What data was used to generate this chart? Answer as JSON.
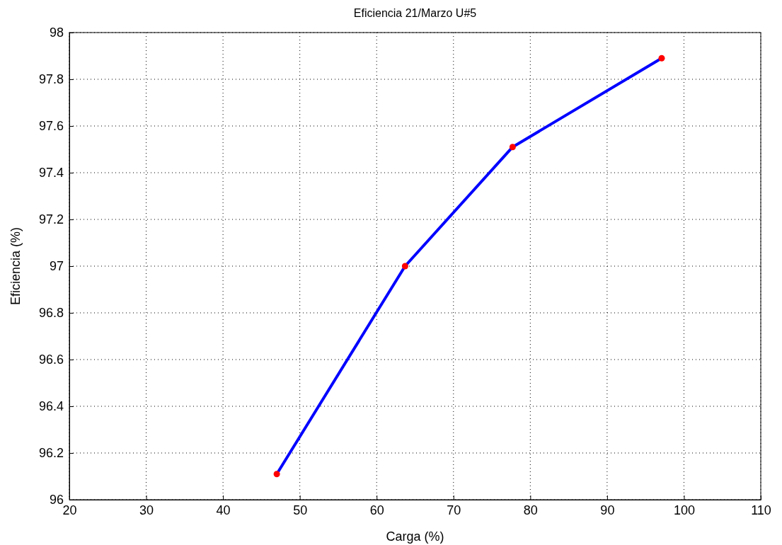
{
  "chart_data": {
    "type": "line",
    "title": "Eficiencia 21/Marzo U#5",
    "xlabel": "Carga (%)",
    "ylabel": "Eficiencia (%)",
    "xlim": [
      20,
      110
    ],
    "xticks": [
      20,
      30,
      40,
      50,
      60,
      70,
      80,
      90,
      100,
      110
    ],
    "ylim": [
      96,
      98
    ],
    "yticks": [
      96,
      {
        "value": 96.2,
        "label": "96.2"
      },
      {
        "value": 96.4,
        "label": "96.4"
      },
      {
        "value": 96.6,
        "label": "96.6"
      },
      {
        "value": 96.8,
        "label": "96.8"
      },
      97,
      {
        "value": 97.2,
        "label": "97.2"
      },
      {
        "value": 97.4,
        "label": "97.4"
      },
      {
        "value": 97.6,
        "label": "97.6"
      },
      {
        "value": 97.8,
        "label": "97.8"
      },
      98
    ],
    "grid": true,
    "series": [
      {
        "color": "#0000ff",
        "marker": "none",
        "line_style": "solid",
        "x": [
          47,
          63.7,
          77.7,
          97.1
        ],
        "values": [
          96.11,
          97.0,
          97.51,
          97.89
        ]
      },
      {
        "type": "scatter",
        "color": "#ff0000",
        "marker": "circle",
        "x": [
          47,
          63.7,
          77.7,
          97.1
        ],
        "values": [
          96.11,
          97.0,
          97.51,
          97.89
        ]
      }
    ]
  }
}
